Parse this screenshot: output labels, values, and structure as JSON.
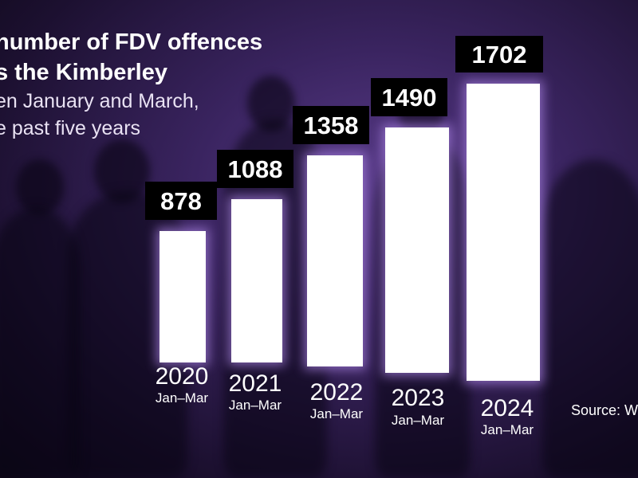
{
  "chart_data": {
    "type": "bar",
    "title": "number of FDV offences",
    "title_line2": "s the Kimberley",
    "subtitle": "en January and March,",
    "subtitle_line2": "e past five years",
    "categories": [
      "2020",
      "2021",
      "2022",
      "2023",
      "2024"
    ],
    "category_sublabels": [
      "Jan–Mar",
      "Jan–Mar",
      "Jan–Mar",
      "Jan–Mar",
      "Jan–Mar"
    ],
    "values": [
      878,
      1088,
      1358,
      1490,
      1702
    ],
    "value_labels": [
      "878",
      "1088",
      "1358",
      "1490",
      "1702"
    ],
    "ylim": [
      0,
      1800
    ],
    "grid": false,
    "legend": "none",
    "bar_color": "#ffffff",
    "label_box_color": "#000000"
  },
  "source": "Source: W",
  "colors": {
    "background": "#3a2460",
    "glow": "#a07ad8"
  }
}
